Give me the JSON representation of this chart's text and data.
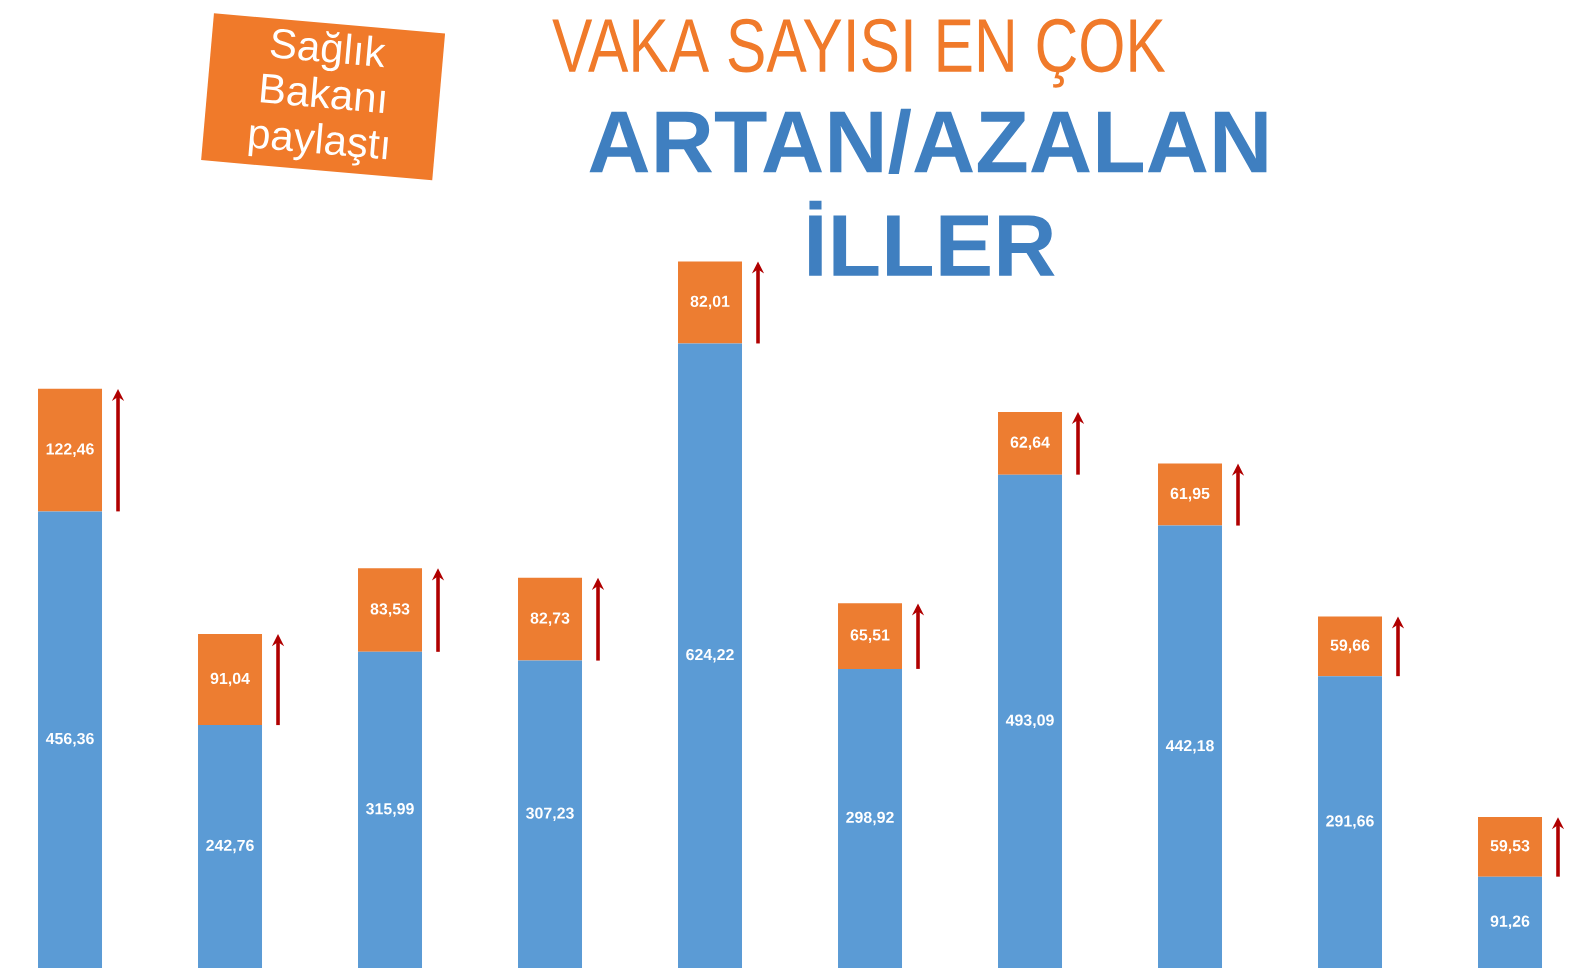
{
  "chart_data": {
    "type": "bar",
    "title": "VAKA SAYISI EN ÇOK",
    "subtitle": "ARTAN/AZALAN İLLER",
    "annotations": [
      "Sağlık Bakanı paylaştı"
    ],
    "categories": [
      null,
      null,
      null,
      null,
      null,
      null,
      null,
      null,
      null,
      null
    ],
    "stacked": true,
    "series": [
      {
        "color": "#5b9bd5",
        "values": [
          456.36,
          242.76,
          315.99,
          307.23,
          624.22,
          298.92,
          493.09,
          442.18,
          291.66,
          91.26
        ],
        "value_labels": [
          "456,36",
          "242,76",
          "315,99",
          "307,23",
          "624,22",
          "298,92",
          "493,09",
          "442,18",
          "291,66",
          "91,26"
        ]
      },
      {
        "color": "#ed7d31",
        "values": [
          122.46,
          91.04,
          83.53,
          82.73,
          82.01,
          65.51,
          62.64,
          61.95,
          59.66,
          59.53
        ],
        "value_labels": [
          "122,46",
          "91,04",
          "83,53",
          "82,73",
          "82,01",
          "65,51",
          "62,64",
          "61,95",
          "59,66",
          "59,53"
        ]
      }
    ]
  }
}
